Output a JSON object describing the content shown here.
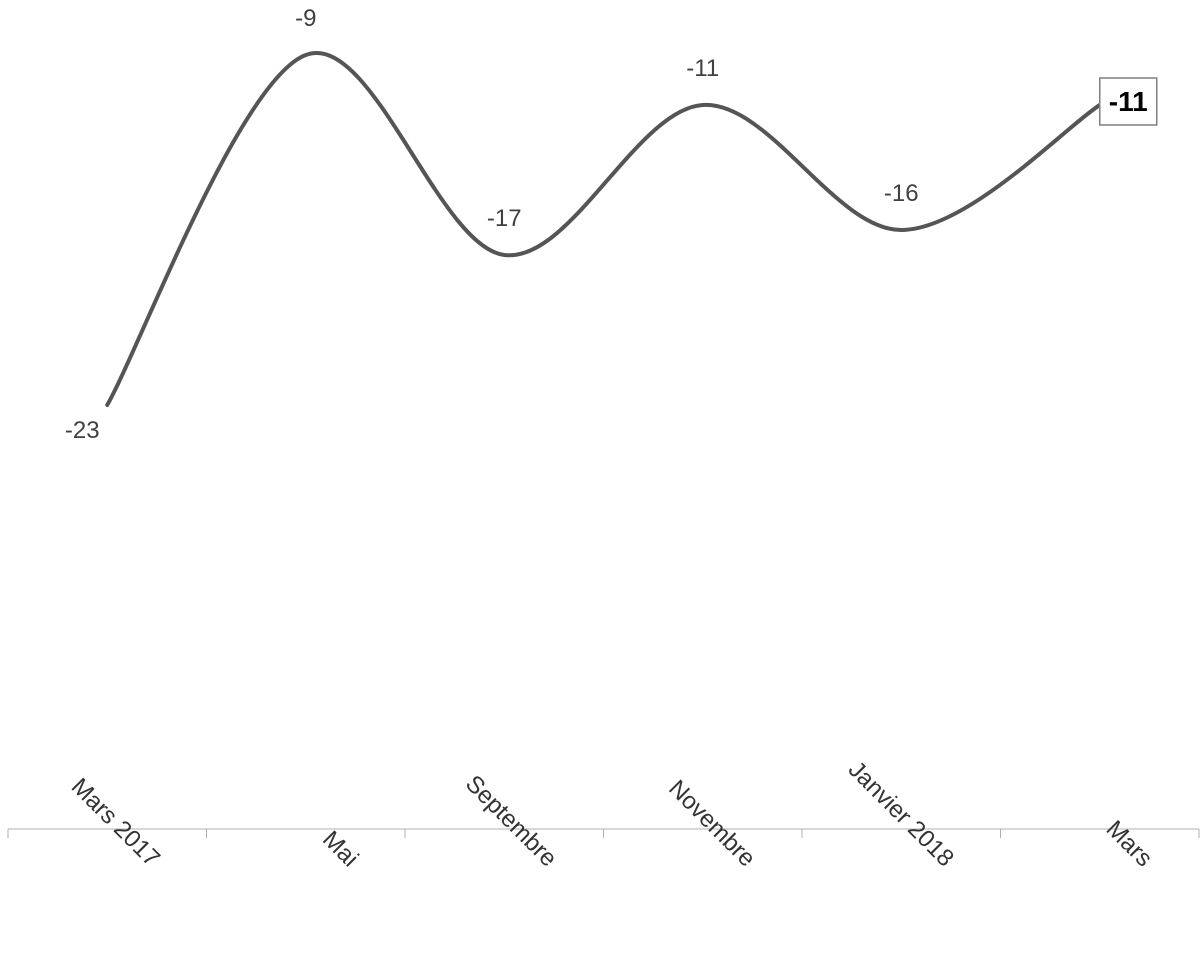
{
  "chart_data": {
    "type": "line",
    "categories": [
      "Mars 2017",
      "Mai",
      "Septembre",
      "Novembre",
      "Janvier 2018",
      "Mars"
    ],
    "series": [
      {
        "values": [
          -23,
          -9,
          -17,
          -11,
          -16,
          -11
        ],
        "labels": [
          "-23",
          "-9",
          "-17",
          "-11",
          "-16",
          "-11"
        ]
      }
    ],
    "smooth": true,
    "grid": false,
    "legend": "none",
    "highlight_last_label": true,
    "colors": {
      "line": "#555555",
      "axis": "#b0b0b0",
      "label": "#404040"
    }
  }
}
